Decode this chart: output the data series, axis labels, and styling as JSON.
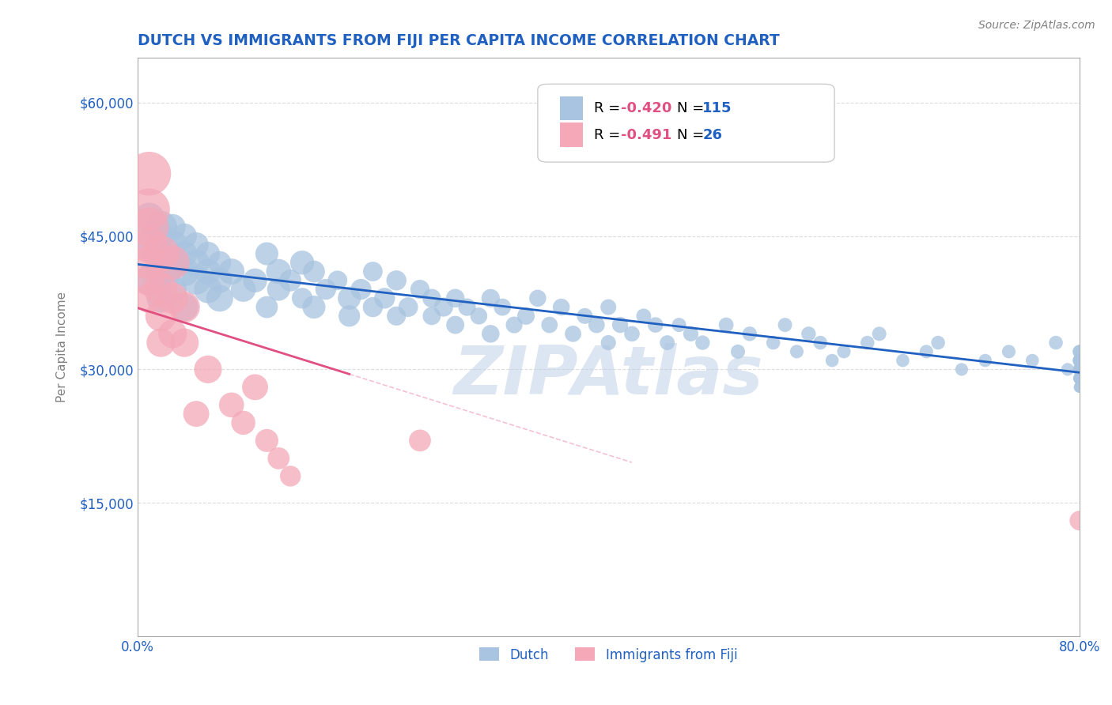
{
  "title": "DUTCH VS IMMIGRANTS FROM FIJI PER CAPITA INCOME CORRELATION CHART",
  "source_text": "Source: ZipAtlas.com",
  "ylabel": "Per Capita Income",
  "watermark": "ZIPAtlas",
  "xlim": [
    0.0,
    0.8
  ],
  "ylim": [
    0,
    65000
  ],
  "yticks": [
    0,
    15000,
    30000,
    45000,
    60000
  ],
  "ytick_labels": [
    "",
    "$15,000",
    "$30,000",
    "$45,000",
    "$60,000"
  ],
  "xticks": [
    0.0,
    0.1,
    0.2,
    0.3,
    0.4,
    0.5,
    0.6,
    0.7,
    0.8
  ],
  "legend_label1": "Dutch",
  "legend_label2": "Immigrants from Fiji",
  "dutch_color": "#a8c4e0",
  "fiji_color": "#f4a8b8",
  "dutch_line_color": "#2060c0",
  "fiji_line_color": "#e05080",
  "title_color": "#2060c0",
  "legend_text_color": "#2060c0",
  "legend_r_color": "#e05080",
  "axis_color": "#aaaaaa",
  "grid_color": "#dddddd",
  "watermark_color": "#c0d0e8",
  "dutch_x": [
    0.01,
    0.01,
    0.01,
    0.02,
    0.02,
    0.02,
    0.02,
    0.02,
    0.03,
    0.03,
    0.03,
    0.03,
    0.04,
    0.04,
    0.04,
    0.04,
    0.05,
    0.05,
    0.05,
    0.06,
    0.06,
    0.06,
    0.07,
    0.07,
    0.07,
    0.08,
    0.09,
    0.1,
    0.11,
    0.11,
    0.12,
    0.12,
    0.13,
    0.14,
    0.14,
    0.15,
    0.15,
    0.16,
    0.17,
    0.18,
    0.18,
    0.19,
    0.2,
    0.2,
    0.21,
    0.22,
    0.22,
    0.23,
    0.24,
    0.25,
    0.25,
    0.26,
    0.27,
    0.27,
    0.28,
    0.29,
    0.3,
    0.3,
    0.31,
    0.32,
    0.33,
    0.34,
    0.35,
    0.36,
    0.37,
    0.38,
    0.39,
    0.4,
    0.4,
    0.41,
    0.42,
    0.43,
    0.44,
    0.45,
    0.46,
    0.47,
    0.48,
    0.5,
    0.51,
    0.52,
    0.54,
    0.55,
    0.56,
    0.57,
    0.58,
    0.59,
    0.6,
    0.62,
    0.63,
    0.65,
    0.67,
    0.68,
    0.7,
    0.72,
    0.74,
    0.76,
    0.78,
    0.79,
    0.8,
    0.8,
    0.8,
    0.8,
    0.8,
    0.8,
    0.8,
    0.8,
    0.8,
    0.8,
    0.8,
    0.8,
    0.8,
    0.8,
    0.8,
    0.8,
    0.8
  ],
  "dutch_y": [
    44000,
    47000,
    40000,
    43000,
    46000,
    41000,
    38000,
    45000,
    42000,
    44000,
    39000,
    46000,
    41000,
    37000,
    43000,
    45000,
    40000,
    42000,
    44000,
    39000,
    41000,
    43000,
    38000,
    40000,
    42000,
    41000,
    39000,
    40000,
    43000,
    37000,
    41000,
    39000,
    40000,
    38000,
    42000,
    37000,
    41000,
    39000,
    40000,
    38000,
    36000,
    39000,
    37000,
    41000,
    38000,
    40000,
    36000,
    37000,
    39000,
    38000,
    36000,
    37000,
    38000,
    35000,
    37000,
    36000,
    38000,
    34000,
    37000,
    35000,
    36000,
    38000,
    35000,
    37000,
    34000,
    36000,
    35000,
    37000,
    33000,
    35000,
    34000,
    36000,
    35000,
    33000,
    35000,
    34000,
    33000,
    35000,
    32000,
    34000,
    33000,
    35000,
    32000,
    34000,
    33000,
    31000,
    32000,
    33000,
    34000,
    31000,
    32000,
    33000,
    30000,
    31000,
    32000,
    31000,
    33000,
    30000,
    32000,
    31000,
    30000,
    29000,
    31000,
    32000,
    30000,
    31000,
    29000,
    30000,
    31000,
    30000,
    29000,
    28000,
    30000,
    29000,
    28000
  ],
  "dutch_sizes": [
    120,
    100,
    90,
    80,
    110,
    95,
    85,
    75,
    100,
    90,
    80,
    70,
    90,
    80,
    70,
    65,
    85,
    75,
    65,
    80,
    70,
    60,
    75,
    65,
    55,
    70,
    65,
    60,
    55,
    50,
    65,
    55,
    50,
    45,
    60,
    55,
    50,
    45,
    40,
    55,
    48,
    45,
    42,
    40,
    45,
    42,
    38,
    40,
    38,
    36,
    34,
    38,
    36,
    34,
    32,
    30,
    35,
    33,
    31,
    29,
    32,
    30,
    28,
    30,
    28,
    26,
    28,
    26,
    24,
    27,
    25,
    23,
    25,
    23,
    21,
    24,
    22,
    23,
    21,
    22,
    20,
    21,
    19,
    22,
    20,
    18,
    19,
    20,
    21,
    18,
    19,
    20,
    17,
    18,
    19,
    18,
    20,
    17,
    18,
    19,
    17,
    16,
    18,
    19,
    17,
    16,
    15,
    17,
    16,
    15,
    14,
    13,
    15,
    14,
    13
  ],
  "fiji_x": [
    0.01,
    0.01,
    0.01,
    0.01,
    0.01,
    0.01,
    0.01,
    0.02,
    0.02,
    0.02,
    0.02,
    0.03,
    0.03,
    0.03,
    0.04,
    0.04,
    0.05,
    0.06,
    0.08,
    0.09,
    0.1,
    0.11,
    0.12,
    0.13,
    0.24,
    0.8
  ],
  "fiji_y": [
    52000,
    48000,
    46000,
    44000,
    42000,
    40000,
    38000,
    43000,
    39000,
    36000,
    33000,
    42000,
    38000,
    34000,
    37000,
    33000,
    25000,
    30000,
    26000,
    24000,
    28000,
    22000,
    20000,
    18000,
    22000,
    13000
  ],
  "fiji_sizes": [
    200,
    180,
    160,
    140,
    120,
    100,
    90,
    140,
    120,
    100,
    85,
    120,
    100,
    85,
    100,
    85,
    70,
    80,
    65,
    60,
    70,
    55,
    50,
    45,
    50,
    40
  ]
}
